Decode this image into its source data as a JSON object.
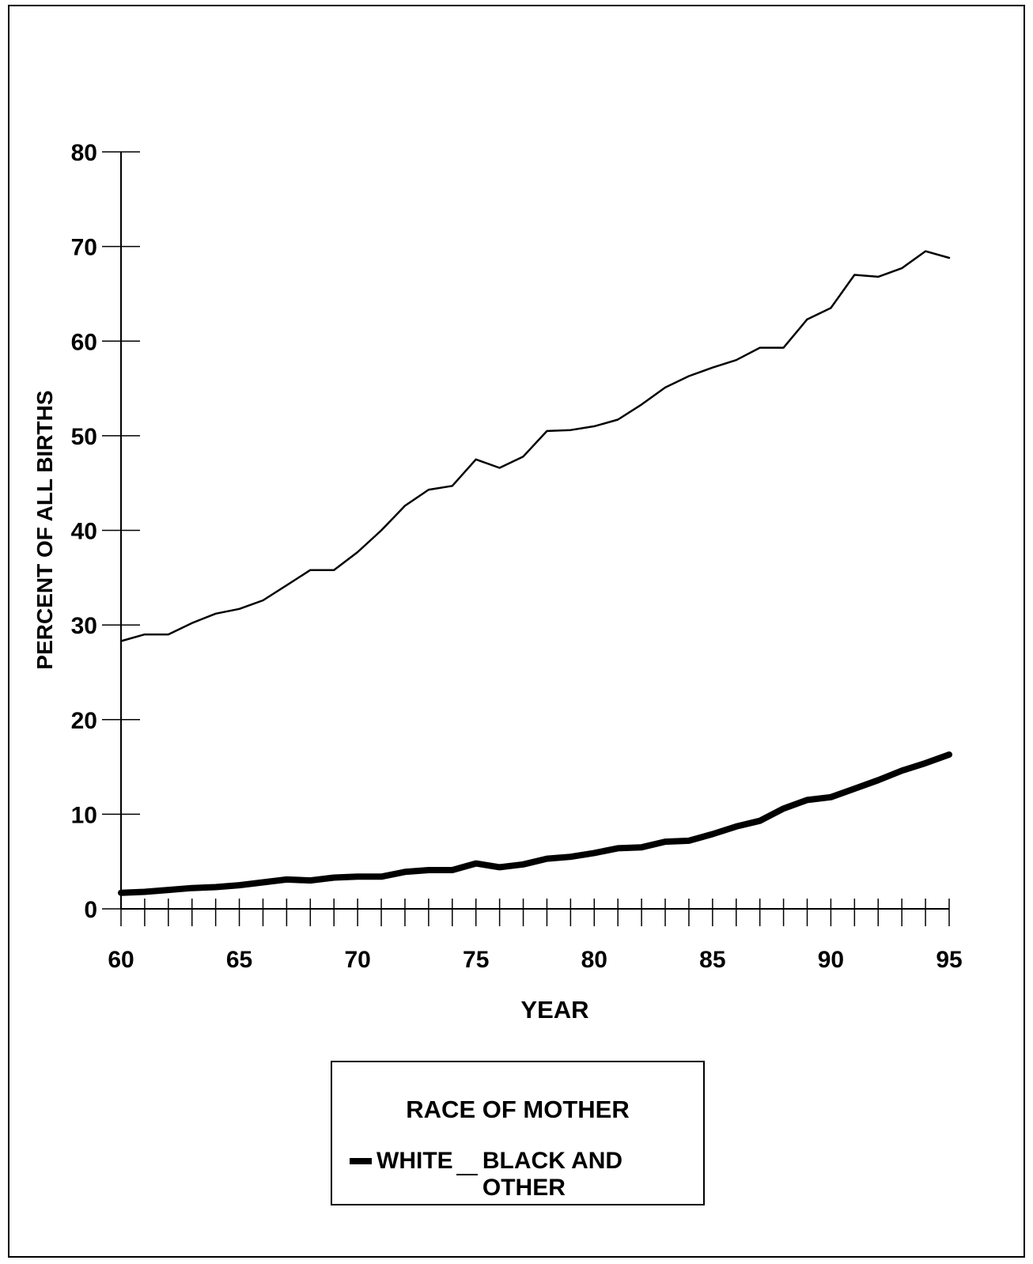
{
  "chart_data": {
    "type": "line",
    "xlabel": "YEAR",
    "ylabel": "PERCENT OF ALL BIRTHS",
    "xlim": [
      60,
      95
    ],
    "ylim": [
      0,
      80
    ],
    "x_ticks": [
      "60",
      "65",
      "70",
      "75",
      "80",
      "85",
      "90",
      "95"
    ],
    "y_ticks": [
      "0",
      "10",
      "20",
      "30",
      "40",
      "50",
      "60",
      "70",
      "80"
    ],
    "legend_title": "RACE OF MOTHER",
    "legend_position": "bottom-center",
    "grid": false,
    "x": [
      60,
      61,
      62,
      63,
      64,
      65,
      66,
      67,
      68,
      69,
      70,
      71,
      72,
      73,
      74,
      75,
      76,
      77,
      78,
      79,
      80,
      81,
      82,
      83,
      84,
      85,
      86,
      87,
      88,
      89,
      90,
      91,
      92,
      93,
      94,
      95
    ],
    "series": [
      {
        "name": "WHITE",
        "line_style": "thick",
        "values": [
          1.7,
          1.8,
          2.0,
          2.2,
          2.3,
          2.5,
          2.8,
          3.1,
          3.0,
          3.3,
          3.4,
          3.4,
          3.9,
          4.1,
          4.1,
          4.8,
          4.4,
          4.7,
          5.3,
          5.5,
          5.9,
          6.4,
          6.5,
          7.1,
          7.2,
          7.9,
          8.7,
          9.3,
          10.6,
          11.5,
          11.8,
          12.7,
          13.6,
          14.6,
          15.4,
          16.3
        ]
      },
      {
        "name": "BLACK AND OTHER",
        "line_style": "thin",
        "values": [
          28.3,
          29.0,
          29.0,
          30.2,
          31.2,
          31.7,
          32.6,
          34.2,
          35.8,
          35.8,
          37.7,
          40.0,
          42.6,
          44.3,
          44.7,
          47.5,
          46.6,
          47.8,
          50.5,
          50.6,
          51.0,
          51.7,
          53.3,
          55.1,
          56.3,
          57.2,
          58.0,
          59.3,
          59.3,
          62.3,
          63.5,
          67.0,
          66.8,
          67.7,
          69.5,
          68.8
        ]
      }
    ]
  }
}
